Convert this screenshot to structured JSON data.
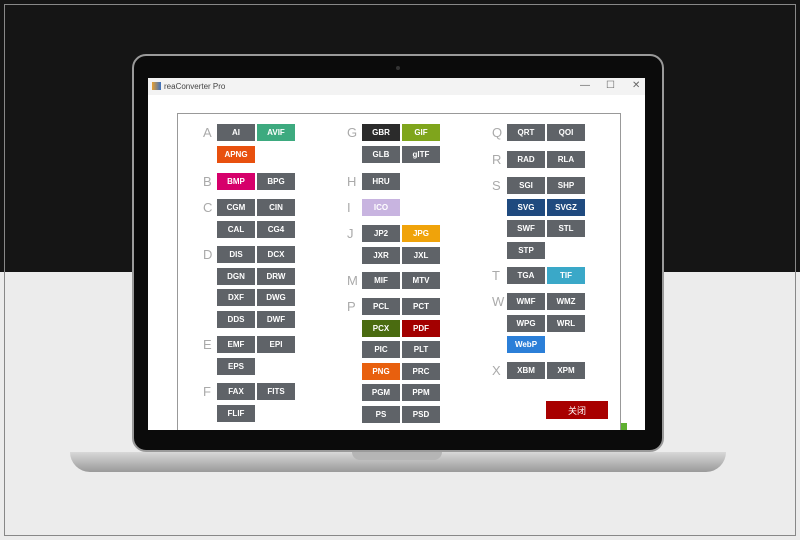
{
  "window": {
    "title": "reaConverter Pro",
    "minimize": "—",
    "maximize": "☐",
    "close": "✕"
  },
  "dialog": {
    "close_label": "关闭",
    "close_color": "#a80000"
  },
  "columns": [
    {
      "groups": [
        {
          "letter": "A",
          "formats": [
            {
              "label": "AI",
              "color": "#5f6368"
            },
            {
              "label": "AVIF",
              "color": "#3daa7f"
            },
            {
              "label": "APNG",
              "color": "#e8500e"
            }
          ]
        },
        {
          "letter": "B",
          "formats": [
            {
              "label": "BMP",
              "color": "#d6006b"
            },
            {
              "label": "BPG",
              "color": "#5f6368"
            }
          ]
        },
        {
          "letter": "C",
          "formats": [
            {
              "label": "CGM",
              "color": "#5f6368"
            },
            {
              "label": "CIN",
              "color": "#5f6368"
            },
            {
              "label": "CAL",
              "color": "#5f6368"
            },
            {
              "label": "CG4",
              "color": "#5f6368"
            }
          ]
        },
        {
          "letter": "D",
          "formats": [
            {
              "label": "DIS",
              "color": "#5f6368"
            },
            {
              "label": "DCX",
              "color": "#5f6368"
            },
            {
              "label": "DGN",
              "color": "#5f6368"
            },
            {
              "label": "DRW",
              "color": "#5f6368"
            },
            {
              "label": "DXF",
              "color": "#5f6368"
            },
            {
              "label": "DWG",
              "color": "#5f6368"
            },
            {
              "label": "DDS",
              "color": "#5f6368"
            },
            {
              "label": "DWF",
              "color": "#5f6368"
            }
          ]
        },
        {
          "letter": "E",
          "formats": [
            {
              "label": "EMF",
              "color": "#5f6368"
            },
            {
              "label": "EPI",
              "color": "#5f6368"
            },
            {
              "label": "EPS",
              "color": "#5f6368"
            }
          ]
        },
        {
          "letter": "F",
          "formats": [
            {
              "label": "FAX",
              "color": "#5f6368"
            },
            {
              "label": "FITS",
              "color": "#5f6368"
            },
            {
              "label": "FLIF",
              "color": "#5f6368"
            }
          ]
        }
      ]
    },
    {
      "groups": [
        {
          "letter": "G",
          "formats": [
            {
              "label": "GBR",
              "color": "#2b2b2b"
            },
            {
              "label": "GIF",
              "color": "#7fa51c"
            },
            {
              "label": "GLB",
              "color": "#5f6368"
            },
            {
              "label": "glTF",
              "color": "#5f6368"
            }
          ]
        },
        {
          "letter": "H",
          "formats": [
            {
              "label": "HRU",
              "color": "#5f6368"
            }
          ]
        },
        {
          "letter": "I",
          "formats": [
            {
              "label": "ICO",
              "color": "#c8b4e0"
            }
          ]
        },
        {
          "letter": "J",
          "formats": [
            {
              "label": "JP2",
              "color": "#5f6368"
            },
            {
              "label": "JPG",
              "color": "#f0a30a"
            },
            {
              "label": "JXR",
              "color": "#5f6368"
            },
            {
              "label": "JXL",
              "color": "#5f6368"
            }
          ]
        },
        {
          "letter": "M",
          "formats": [
            {
              "label": "MIF",
              "color": "#5f6368"
            },
            {
              "label": "MTV",
              "color": "#5f6368"
            }
          ]
        },
        {
          "letter": "P",
          "formats": [
            {
              "label": "PCL",
              "color": "#5f6368"
            },
            {
              "label": "PCT",
              "color": "#5f6368"
            },
            {
              "label": "PCX",
              "color": "#4a6b10"
            },
            {
              "label": "PDF",
              "color": "#a30000"
            },
            {
              "label": "PIC",
              "color": "#5f6368"
            },
            {
              "label": "PLT",
              "color": "#5f6368"
            },
            {
              "label": "PNG",
              "color": "#e8600e"
            },
            {
              "label": "PRC",
              "color": "#5f6368"
            },
            {
              "label": "PGM",
              "color": "#5f6368"
            },
            {
              "label": "PPM",
              "color": "#5f6368"
            },
            {
              "label": "PS",
              "color": "#5f6368"
            },
            {
              "label": "PSD",
              "color": "#5f6368"
            }
          ]
        }
      ]
    },
    {
      "groups": [
        {
          "letter": "Q",
          "formats": [
            {
              "label": "QRT",
              "color": "#5f6368"
            },
            {
              "label": "QOI",
              "color": "#5f6368"
            }
          ]
        },
        {
          "letter": "R",
          "formats": [
            {
              "label": "RAD",
              "color": "#5f6368"
            },
            {
              "label": "RLA",
              "color": "#5f6368"
            }
          ]
        },
        {
          "letter": "S",
          "formats": [
            {
              "label": "SGI",
              "color": "#5f6368"
            },
            {
              "label": "SHP",
              "color": "#5f6368"
            },
            {
              "label": "SVG",
              "color": "#1f4a7f"
            },
            {
              "label": "SVGZ",
              "color": "#1f4a7f"
            },
            {
              "label": "SWF",
              "color": "#5f6368"
            },
            {
              "label": "STL",
              "color": "#5f6368"
            },
            {
              "label": "STP",
              "color": "#5f6368"
            }
          ]
        },
        {
          "letter": "T",
          "formats": [
            {
              "label": "TGA",
              "color": "#5f6368"
            },
            {
              "label": "TIF",
              "color": "#3aa8c8"
            }
          ]
        },
        {
          "letter": "W",
          "formats": [
            {
              "label": "WMF",
              "color": "#5f6368"
            },
            {
              "label": "WMZ",
              "color": "#5f6368"
            },
            {
              "label": "WPG",
              "color": "#5f6368"
            },
            {
              "label": "WRL",
              "color": "#5f6368"
            },
            {
              "label": "WebP",
              "color": "#2b7fd8"
            }
          ]
        },
        {
          "letter": "X",
          "formats": [
            {
              "label": "XBM",
              "color": "#5f6368"
            },
            {
              "label": "XPM",
              "color": "#5f6368"
            }
          ]
        }
      ]
    }
  ]
}
